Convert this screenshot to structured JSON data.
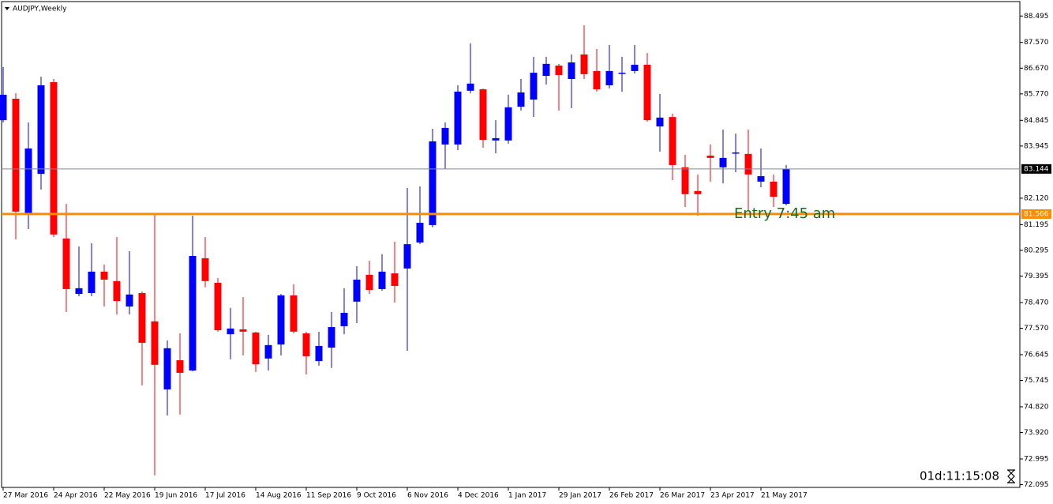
{
  "chart_data": {
    "type": "candlestick",
    "title": "AUDJPY,Weekly",
    "categories": [
      "27 Mar 2016",
      null,
      null,
      null,
      "24 Apr 2016",
      null,
      null,
      null,
      "22 May 2016",
      null,
      null,
      null,
      "19 Jun 2016",
      null,
      null,
      null,
      "17 Jul 2016",
      null,
      null,
      null,
      "14 Aug 2016",
      null,
      null,
      null,
      "11 Sep 2016",
      null,
      null,
      null,
      "9 Oct 2016",
      null,
      null,
      null,
      "6 Nov 2016",
      null,
      null,
      null,
      "4 Dec 2016",
      null,
      null,
      null,
      "1 Jan 2017",
      null,
      null,
      null,
      "29 Jan 2017",
      null,
      null,
      null,
      "26 Feb 2017",
      null,
      null,
      null,
      "26 Mar 2017",
      null,
      null,
      null,
      "23 Apr 2017",
      null,
      null,
      null,
      "21 May 2017",
      null,
      null
    ],
    "open": [
      84.85,
      85.6,
      81.54,
      82.97,
      86.18,
      80.71,
      78.77,
      78.8,
      79.55,
      79.22,
      78.33,
      78.8,
      77.81,
      75.43,
      76.45,
      76.09,
      80.02,
      79.16,
      77.36,
      77.53,
      77.42,
      76.51,
      77.0,
      78.72,
      77.39,
      76.42,
      76.89,
      77.64,
      78.5,
      79.44,
      78.94,
      79.49,
      79.66,
      80.57,
      81.18,
      84.0,
      84.0,
      85.88,
      85.93,
      84.14,
      84.14,
      85.32,
      85.57,
      86.4,
      86.76,
      86.29,
      87.15,
      86.57,
      86.07,
      86.48,
      86.57,
      86.79,
      84.63,
      84.96,
      83.2,
      82.37,
      83.61,
      83.2,
      83.69,
      83.67,
      82.7,
      82.7,
      81.92
    ],
    "high": [
      86.71,
      85.79,
      84.77,
      86.37,
      86.29,
      81.92,
      80.43,
      80.54,
      79.8,
      80.76,
      80.27,
      78.86,
      81.54,
      77.14,
      77.39,
      81.51,
      80.76,
      79.33,
      78.28,
      78.66,
      77.45,
      77.34,
      78.77,
      79.11,
      77.45,
      77.45,
      78.14,
      78.97,
      79.74,
      79.93,
      80.16,
      80.6,
      82.48,
      82.53,
      84.55,
      84.77,
      86.07,
      87.54,
      85.96,
      84.85,
      85.74,
      86.29,
      87.07,
      87.07,
      86.82,
      87.15,
      88.17,
      87.34,
      87.48,
      87.07,
      87.48,
      87.2,
      85.77,
      85.08,
      83.64,
      82.95,
      84.0,
      84.52,
      84.38,
      84.52,
      83.86,
      82.95,
      83.28
    ],
    "low": [
      84.77,
      80.68,
      81.04,
      82.42,
      80.76,
      78.14,
      78.69,
      78.69,
      78.33,
      78.05,
      78.05,
      75.57,
      72.42,
      74.52,
      74.55,
      76.06,
      79.0,
      77.45,
      76.48,
      76.62,
      76.04,
      76.09,
      76.62,
      77.39,
      75.95,
      76.26,
      76.18,
      77.36,
      77.75,
      78.77,
      78.88,
      78.47,
      76.78,
      80.51,
      81.1,
      83.14,
      83.8,
      85.79,
      83.89,
      83.69,
      84.03,
      85.19,
      84.96,
      86.1,
      85.19,
      85.27,
      86.29,
      85.85,
      85.96,
      85.85,
      86.48,
      84.8,
      83.75,
      82.75,
      81.81,
      81.51,
      82.7,
      82.64,
      83.03,
      81.7,
      82.5,
      81.81,
      81.87
    ],
    "close": [
      85.74,
      81.65,
      83.86,
      86.07,
      80.85,
      78.94,
      78.97,
      79.55,
      79.27,
      78.52,
      78.75,
      77.06,
      76.29,
      76.87,
      76.01,
      80.1,
      79.22,
      77.5,
      77.56,
      77.45,
      76.31,
      76.98,
      78.72,
      77.45,
      76.59,
      76.95,
      77.61,
      78.11,
      79.27,
      78.91,
      79.55,
      79.05,
      80.51,
      81.26,
      84.11,
      84.58,
      85.85,
      86.13,
      84.16,
      84.22,
      85.3,
      85.82,
      86.51,
      86.82,
      86.43,
      86.87,
      86.46,
      85.93,
      86.57,
      86.51,
      86.79,
      84.85,
      84.94,
      83.28,
      82.26,
      82.26,
      83.53,
      83.53,
      83.72,
      82.95,
      82.89,
      82.17,
      83.14
    ],
    "up_color": "#0000ff",
    "down_color": "#ff0000",
    "ylim": [
      72.0,
      89.0
    ],
    "yticks": [
      88.495,
      {
        "value": 87.57,
        "label": "87.570"
      },
      {
        "value": 86.67,
        "label": "86.670"
      },
      {
        "value": 85.77,
        "label": "85.770"
      },
      84.845,
      83.945,
      {
        "value": 82.12,
        "label": "82.120"
      },
      81.195,
      80.295,
      79.395,
      {
        "value": 78.47,
        "label": "78.470"
      },
      {
        "value": 77.57,
        "label": "77.570"
      },
      76.645,
      75.745,
      {
        "value": 74.82,
        "label": "74.820"
      },
      {
        "value": 73.92,
        "label": "73.920"
      },
      72.995,
      72.095
    ],
    "hlines": [
      {
        "value": 83.144,
        "color": "#7a8a99",
        "label_bg": "#000000"
      },
      {
        "value": 81.566,
        "color": "#ff8c00",
        "label_bg": "#ff8c00",
        "annotation": "Entry 7:45 am"
      }
    ],
    "timer": "01d:11:15:08"
  }
}
